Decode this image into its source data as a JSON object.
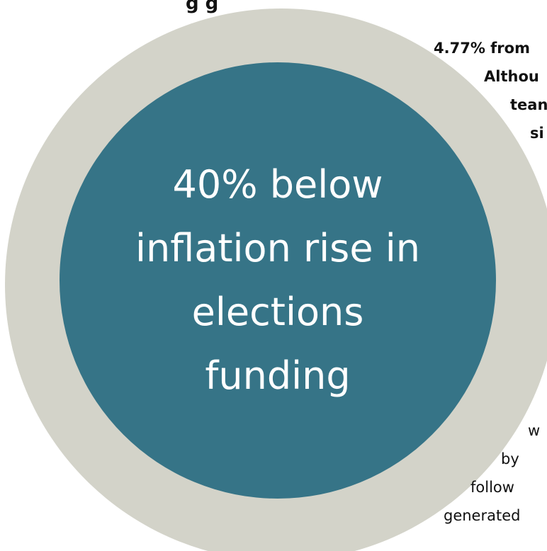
{
  "top_fragment": "g       g",
  "bold_lines": [
    "4.77% from",
    "Althou",
    "tean",
    "si"
  ],
  "headline_lines": [
    "40% below",
    "inflation rise in",
    "elections",
    "funding"
  ],
  "plain_lines": [
    "w",
    "by",
    "follow",
    "generated"
  ],
  "colors": {
    "ring": "#d3d3c9",
    "disc": "#367487",
    "text": "#111111",
    "headline_text": "#ffffff"
  }
}
